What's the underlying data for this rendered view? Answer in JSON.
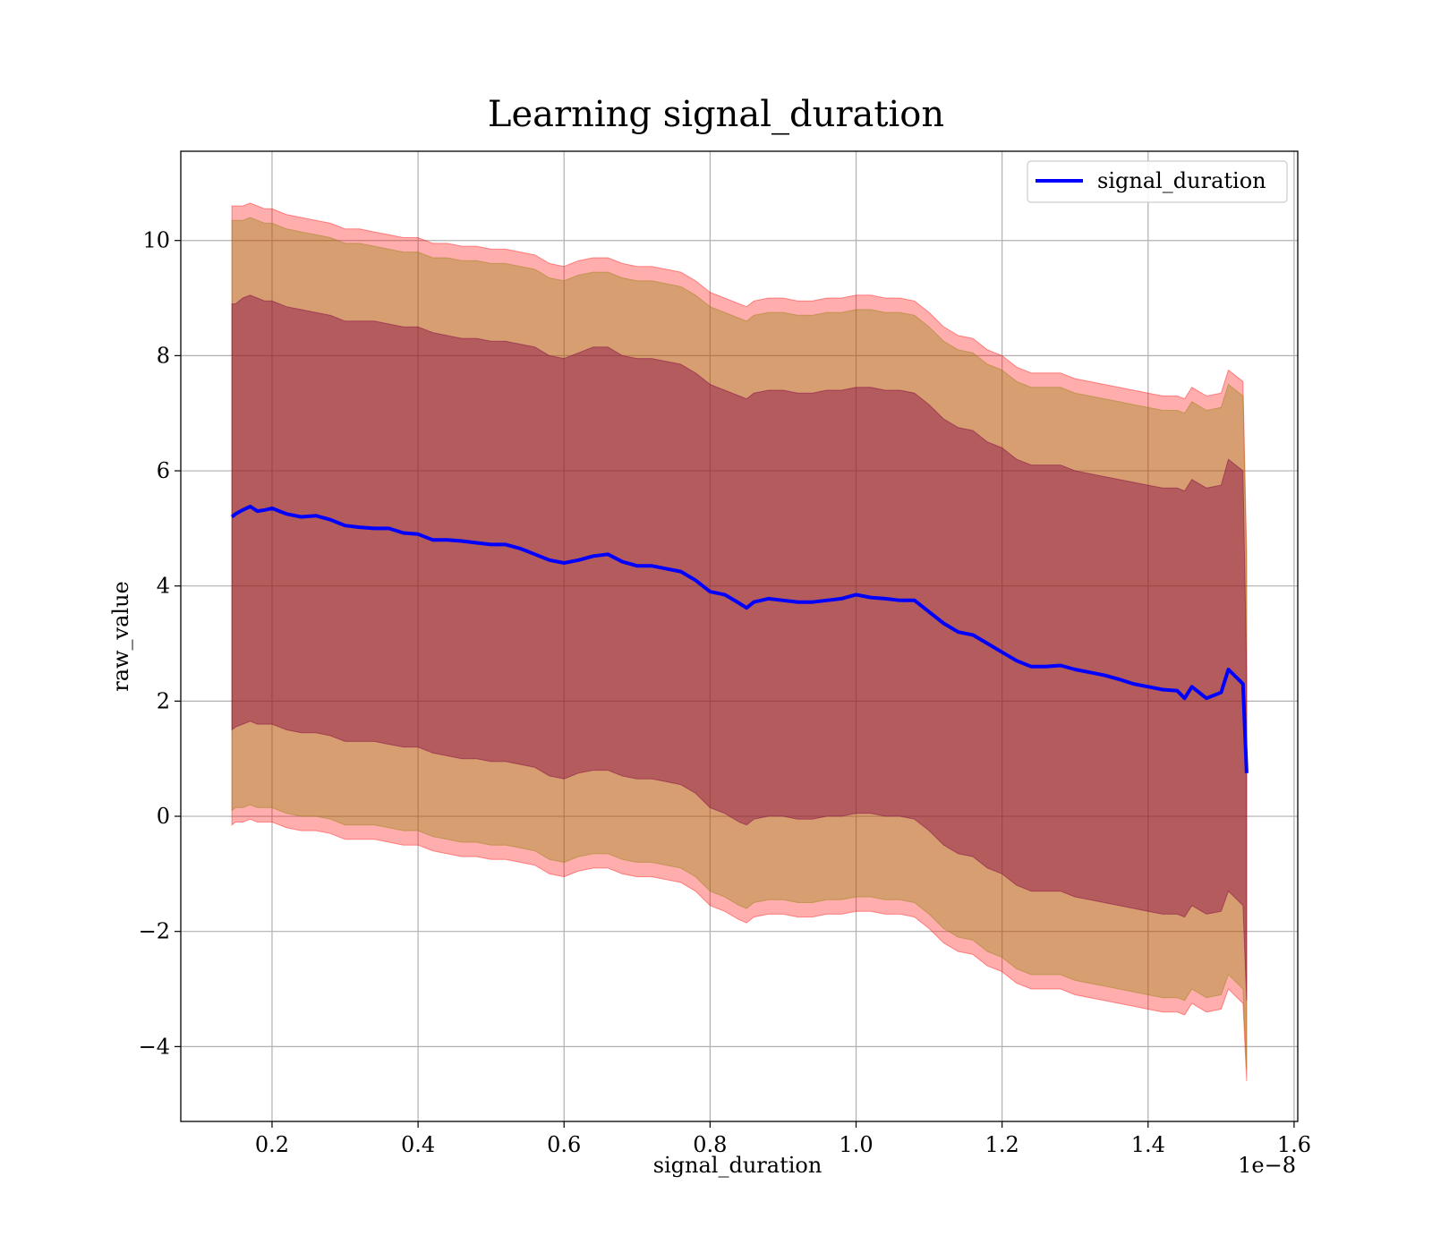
{
  "chart_data": {
    "type": "line",
    "title": "Learning signal_duration",
    "xlabel": "signal_duration",
    "ylabel": "raw_value",
    "x_offset_label": "1e−8",
    "xlim": [
      0.075,
      1.605
    ],
    "ylim": [
      -5.3,
      11.55
    ],
    "x_ticks": [
      0.2,
      0.4,
      0.6,
      0.8,
      1.0,
      1.2,
      1.4,
      1.6
    ],
    "x_tick_labels": [
      "0.2",
      "0.4",
      "0.6",
      "0.8",
      "1.0",
      "1.2",
      "1.4",
      "1.6"
    ],
    "y_ticks": [
      -4,
      -2,
      0,
      2,
      4,
      6,
      8,
      10
    ],
    "y_tick_labels": [
      "−4",
      "−2",
      "0",
      "2",
      "4",
      "6",
      "8",
      "10"
    ],
    "grid": true,
    "legend": {
      "position": "top-right",
      "entries": [
        "signal_duration"
      ]
    },
    "colors": {
      "line": "#0000ff",
      "outer_band": "#ff0000",
      "middle_band": "#8b8000",
      "inner_band": "#800040",
      "grid": "#b0b0b0"
    },
    "series": [
      {
        "name": "signal_duration",
        "x": [
          0.145,
          0.15,
          0.16,
          0.17,
          0.18,
          0.19,
          0.2,
          0.21,
          0.22,
          0.24,
          0.26,
          0.28,
          0.3,
          0.32,
          0.34,
          0.36,
          0.38,
          0.4,
          0.42,
          0.44,
          0.46,
          0.48,
          0.5,
          0.52,
          0.54,
          0.56,
          0.58,
          0.6,
          0.62,
          0.64,
          0.66,
          0.68,
          0.7,
          0.72,
          0.74,
          0.76,
          0.78,
          0.8,
          0.82,
          0.84,
          0.85,
          0.86,
          0.88,
          0.9,
          0.92,
          0.94,
          0.96,
          0.98,
          1.0,
          1.02,
          1.04,
          1.06,
          1.08,
          1.1,
          1.12,
          1.14,
          1.16,
          1.18,
          1.2,
          1.22,
          1.24,
          1.26,
          1.28,
          1.3,
          1.32,
          1.34,
          1.36,
          1.38,
          1.4,
          1.42,
          1.44,
          1.45,
          1.46,
          1.48,
          1.5,
          1.51,
          1.53,
          1.535
        ],
        "y": [
          5.2,
          5.25,
          5.32,
          5.38,
          5.3,
          5.32,
          5.35,
          5.3,
          5.25,
          5.2,
          5.22,
          5.15,
          5.05,
          5.02,
          5.0,
          5.0,
          4.92,
          4.9,
          4.8,
          4.8,
          4.78,
          4.75,
          4.72,
          4.72,
          4.65,
          4.55,
          4.45,
          4.4,
          4.45,
          4.52,
          4.55,
          4.42,
          4.35,
          4.35,
          4.3,
          4.25,
          4.1,
          3.9,
          3.85,
          3.7,
          3.62,
          3.72,
          3.78,
          3.75,
          3.72,
          3.72,
          3.75,
          3.78,
          3.85,
          3.8,
          3.78,
          3.75,
          3.75,
          3.55,
          3.35,
          3.2,
          3.15,
          3.0,
          2.85,
          2.7,
          2.6,
          2.6,
          2.62,
          2.55,
          2.5,
          2.45,
          2.38,
          2.3,
          2.25,
          2.2,
          2.18,
          2.05,
          2.25,
          2.05,
          2.15,
          2.55,
          2.3,
          0.75
        ],
        "outer_upper": [
          10.6,
          10.6,
          10.6,
          10.65,
          10.6,
          10.55,
          10.55,
          10.5,
          10.45,
          10.4,
          10.35,
          10.3,
          10.2,
          10.2,
          10.15,
          10.1,
          10.05,
          10.05,
          9.95,
          9.95,
          9.9,
          9.9,
          9.85,
          9.85,
          9.8,
          9.75,
          9.6,
          9.55,
          9.65,
          9.7,
          9.7,
          9.6,
          9.55,
          9.55,
          9.5,
          9.45,
          9.3,
          9.1,
          9.0,
          8.9,
          8.85,
          8.95,
          9.0,
          9.0,
          8.95,
          8.95,
          9.0,
          9.0,
          9.05,
          9.05,
          9.0,
          9.0,
          8.95,
          8.75,
          8.5,
          8.35,
          8.3,
          8.1,
          8.0,
          7.8,
          7.7,
          7.7,
          7.7,
          7.6,
          7.55,
          7.5,
          7.45,
          7.4,
          7.35,
          7.3,
          7.3,
          7.25,
          7.45,
          7.3,
          7.35,
          7.75,
          7.55,
          4.6
        ],
        "middle_upper": [
          10.35,
          10.35,
          10.35,
          10.4,
          10.35,
          10.3,
          10.3,
          10.25,
          10.2,
          10.15,
          10.1,
          10.05,
          9.95,
          9.95,
          9.9,
          9.85,
          9.8,
          9.8,
          9.7,
          9.7,
          9.65,
          9.65,
          9.6,
          9.6,
          9.55,
          9.5,
          9.35,
          9.3,
          9.4,
          9.45,
          9.45,
          9.35,
          9.3,
          9.3,
          9.25,
          9.2,
          9.05,
          8.85,
          8.75,
          8.65,
          8.6,
          8.7,
          8.75,
          8.75,
          8.7,
          8.7,
          8.75,
          8.75,
          8.8,
          8.8,
          8.75,
          8.75,
          8.7,
          8.5,
          8.25,
          8.1,
          8.05,
          7.85,
          7.75,
          7.55,
          7.45,
          7.45,
          7.45,
          7.35,
          7.3,
          7.25,
          7.2,
          7.15,
          7.1,
          7.05,
          7.05,
          7.0,
          7.2,
          7.05,
          7.1,
          7.5,
          7.3,
          4.3
        ],
        "inner_upper": [
          8.9,
          8.9,
          9.0,
          9.05,
          9.0,
          8.95,
          8.95,
          8.9,
          8.85,
          8.8,
          8.75,
          8.7,
          8.6,
          8.6,
          8.6,
          8.55,
          8.5,
          8.5,
          8.4,
          8.35,
          8.3,
          8.3,
          8.25,
          8.25,
          8.2,
          8.15,
          8.0,
          7.95,
          8.05,
          8.15,
          8.15,
          8.0,
          7.95,
          7.95,
          7.9,
          7.85,
          7.7,
          7.5,
          7.4,
          7.3,
          7.25,
          7.35,
          7.4,
          7.4,
          7.35,
          7.35,
          7.4,
          7.4,
          7.45,
          7.45,
          7.4,
          7.4,
          7.35,
          7.15,
          6.9,
          6.75,
          6.7,
          6.5,
          6.4,
          6.2,
          6.1,
          6.1,
          6.1,
          6.0,
          5.95,
          5.9,
          5.85,
          5.8,
          5.75,
          5.7,
          5.7,
          5.65,
          5.85,
          5.7,
          5.75,
          6.2,
          6.0,
          2.5
        ],
        "inner_lower": [
          1.5,
          1.55,
          1.6,
          1.65,
          1.6,
          1.6,
          1.6,
          1.55,
          1.5,
          1.45,
          1.45,
          1.4,
          1.3,
          1.3,
          1.3,
          1.25,
          1.2,
          1.2,
          1.1,
          1.05,
          1.0,
          1.0,
          0.95,
          0.95,
          0.9,
          0.85,
          0.7,
          0.65,
          0.75,
          0.8,
          0.8,
          0.7,
          0.65,
          0.65,
          0.6,
          0.55,
          0.4,
          0.15,
          0.05,
          -0.1,
          -0.15,
          -0.05,
          0.0,
          0.0,
          -0.05,
          -0.05,
          0.0,
          0.0,
          0.05,
          0.05,
          0.0,
          0.0,
          -0.05,
          -0.25,
          -0.5,
          -0.65,
          -0.7,
          -0.9,
          -1.0,
          -1.2,
          -1.3,
          -1.3,
          -1.3,
          -1.4,
          -1.45,
          -1.5,
          -1.55,
          -1.6,
          -1.65,
          -1.7,
          -1.7,
          -1.75,
          -1.55,
          -1.7,
          -1.65,
          -1.3,
          -1.55,
          -3.2
        ],
        "middle_lower": [
          0.1,
          0.15,
          0.15,
          0.2,
          0.15,
          0.15,
          0.15,
          0.1,
          0.05,
          0.0,
          0.0,
          -0.05,
          -0.15,
          -0.15,
          -0.15,
          -0.2,
          -0.25,
          -0.25,
          -0.35,
          -0.4,
          -0.45,
          -0.45,
          -0.5,
          -0.5,
          -0.55,
          -0.6,
          -0.75,
          -0.8,
          -0.7,
          -0.65,
          -0.65,
          -0.75,
          -0.8,
          -0.8,
          -0.85,
          -0.9,
          -1.05,
          -1.3,
          -1.4,
          -1.55,
          -1.6,
          -1.5,
          -1.45,
          -1.45,
          -1.5,
          -1.5,
          -1.45,
          -1.45,
          -1.4,
          -1.4,
          -1.45,
          -1.45,
          -1.5,
          -1.7,
          -1.95,
          -2.1,
          -2.15,
          -2.35,
          -2.45,
          -2.65,
          -2.75,
          -2.75,
          -2.75,
          -2.85,
          -2.9,
          -2.95,
          -3.0,
          -3.05,
          -3.1,
          -3.15,
          -3.15,
          -3.2,
          -3.0,
          -3.15,
          -3.1,
          -2.75,
          -3.0,
          -4.4
        ],
        "outer_lower": [
          -0.15,
          -0.1,
          -0.1,
          -0.05,
          -0.1,
          -0.1,
          -0.1,
          -0.15,
          -0.2,
          -0.25,
          -0.25,
          -0.3,
          -0.4,
          -0.4,
          -0.4,
          -0.45,
          -0.5,
          -0.5,
          -0.6,
          -0.65,
          -0.7,
          -0.7,
          -0.75,
          -0.75,
          -0.8,
          -0.85,
          -1.0,
          -1.05,
          -0.95,
          -0.9,
          -0.9,
          -1.0,
          -1.05,
          -1.05,
          -1.1,
          -1.15,
          -1.3,
          -1.55,
          -1.65,
          -1.8,
          -1.85,
          -1.75,
          -1.7,
          -1.7,
          -1.75,
          -1.75,
          -1.7,
          -1.7,
          -1.65,
          -1.65,
          -1.7,
          -1.7,
          -1.75,
          -1.95,
          -2.2,
          -2.35,
          -2.4,
          -2.6,
          -2.7,
          -2.9,
          -3.0,
          -3.0,
          -3.0,
          -3.1,
          -3.15,
          -3.2,
          -3.25,
          -3.3,
          -3.35,
          -3.4,
          -3.4,
          -3.45,
          -3.25,
          -3.4,
          -3.35,
          -3.0,
          -3.25,
          -4.6
        ]
      }
    ]
  }
}
